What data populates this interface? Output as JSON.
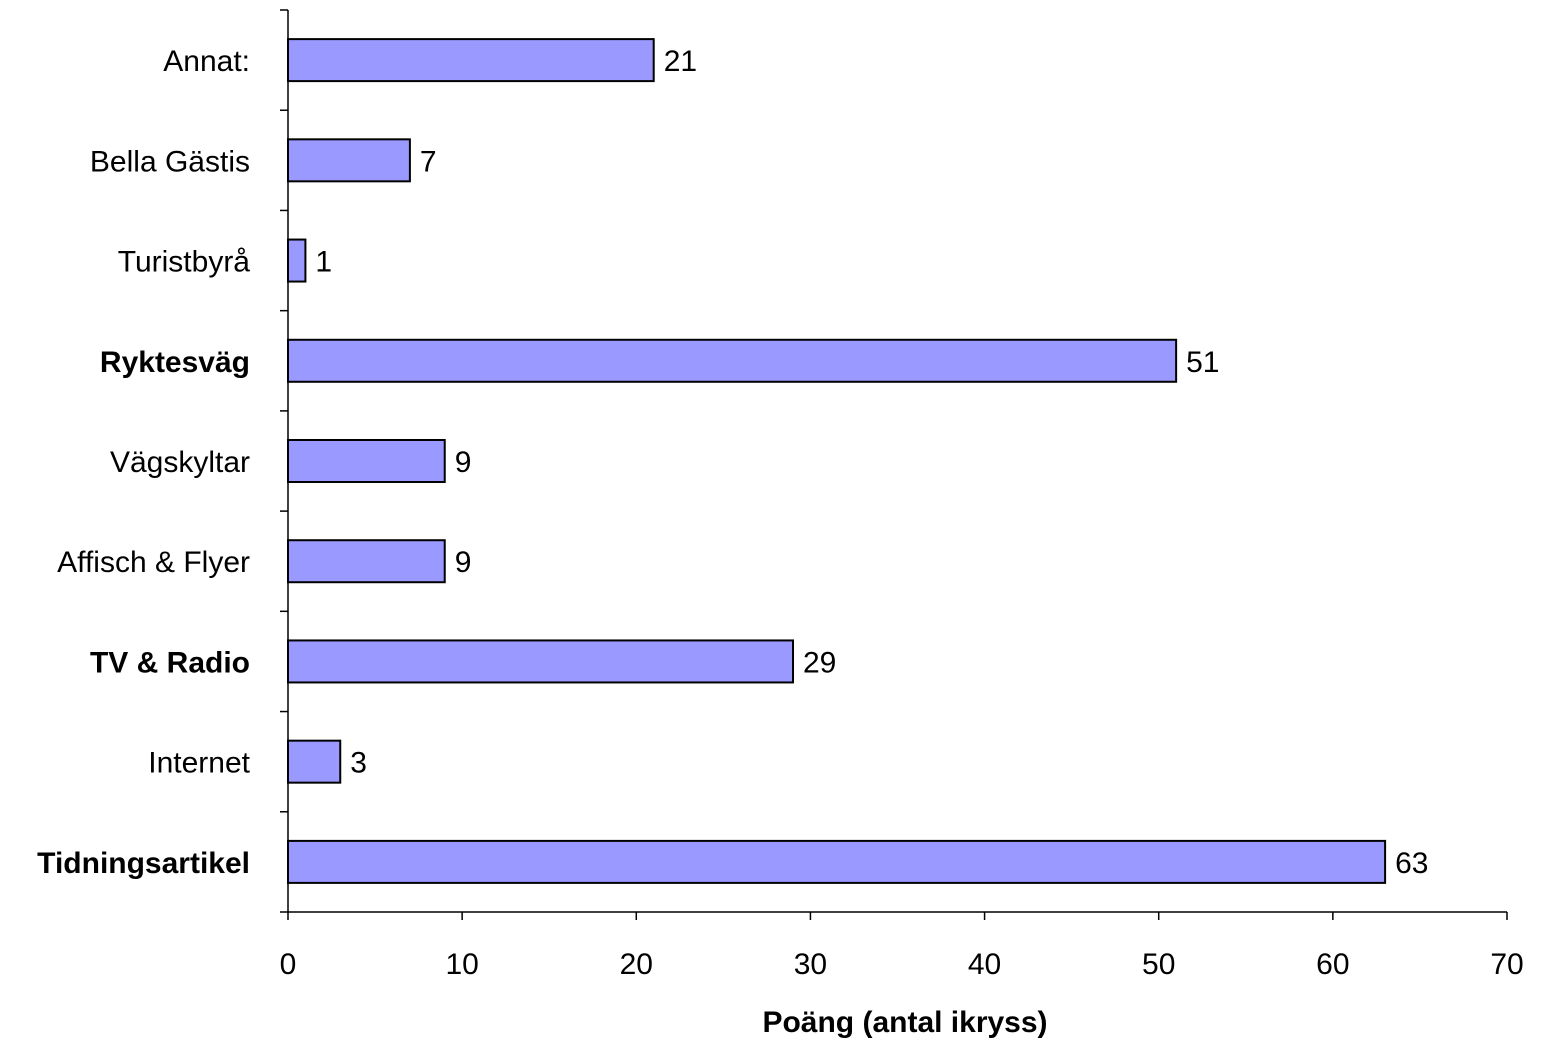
{
  "chart_data": {
    "type": "bar",
    "orientation": "horizontal",
    "categories": [
      "Tidningsartikel",
      "Internet",
      "TV & Radio",
      "Affisch & Flyer",
      "Vägskyltar",
      "Ryktesväg",
      "Turistbyrå",
      "Bella Gästis",
      "Annat:"
    ],
    "bold_categories": [
      "Tidningsartikel",
      "TV & Radio",
      "Ryktesväg"
    ],
    "values": [
      63,
      3,
      29,
      9,
      9,
      51,
      1,
      7,
      21
    ],
    "xlabel": "Poäng (antal ikryss)",
    "ylabel": "",
    "title": "",
    "xlim": [
      0,
      70
    ],
    "xticks": [
      0,
      10,
      20,
      30,
      40,
      50,
      60,
      70
    ],
    "grid": false,
    "bar_color": "#9999ff",
    "bar_edge_color": "#000000"
  }
}
